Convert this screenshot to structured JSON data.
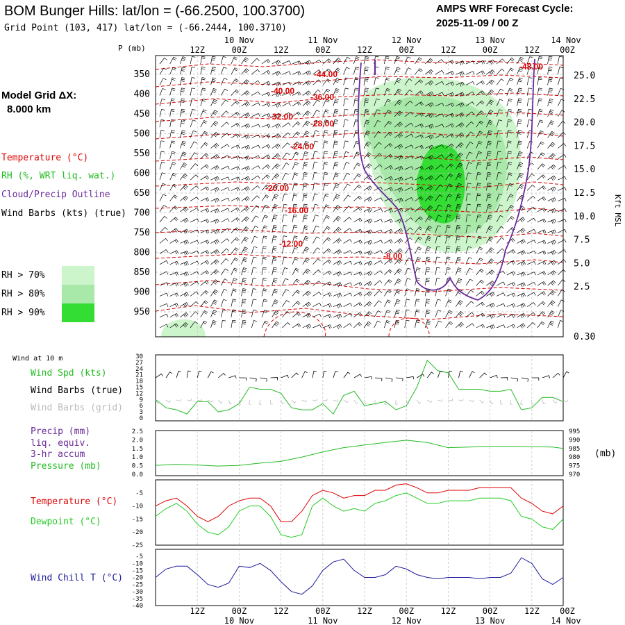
{
  "header": {
    "title": "BOM Bunger Hills:  lat/lon = (-66.2500, 100.3700)",
    "grid_point": "Grid Point (103, 417) lat/lon = (-66.2444, 100.3710)",
    "cycle_label": "AMPS WRF Forecast Cycle:",
    "cycle_value": "2025-11-09 / 00  Z"
  },
  "colors": {
    "temperature": "#dd0000",
    "rh": "#22bb22",
    "cloud": "#6a2a9a",
    "wind": "#000000",
    "grid_barbs": "#bbbbbb",
    "precip": "#6a2a9a",
    "dewpoint": "#22cc22",
    "windchill": "#1a1a99",
    "rh70": "#ccf5cc",
    "rh80": "#a8e8a8",
    "rh90": "#33dd33"
  },
  "legend": {
    "model_grid": "Model Grid ΔX:",
    "model_grid_value": "8.000 km",
    "temperature": "Temperature (°C)",
    "rh": "RH (%, WRT liq. wat.)",
    "cloud": "Cloud/Precip Outline",
    "wind": "Wind Barbs (kts) (true)",
    "rh70": "RH > 70%",
    "rh80": "RH > 80%",
    "rh90": "RH > 90%"
  },
  "time_axis": {
    "labels": [
      "12Z",
      "00Z",
      "12Z",
      "00Z",
      "12Z",
      "00Z",
      "12Z",
      "00Z",
      "12Z",
      "00Z"
    ],
    "day_labels": [
      "10 Nov",
      "11 Nov",
      "12 Nov",
      "13 Nov",
      "14 Nov"
    ]
  },
  "chart_data": [
    {
      "id": "cross_section",
      "type": "heatmap",
      "ylabel_left": "P (mb)",
      "ylabel_right": "Kft MSL",
      "pressure_levels": [
        "350",
        "400",
        "450",
        "500",
        "550",
        "600",
        "650",
        "700",
        "750",
        "800",
        "850",
        "900",
        "950"
      ],
      "height_labels": [
        "25.0",
        "22.5",
        "20.0",
        "17.5",
        "15.0",
        "12.5",
        "10.0",
        "7.5",
        "5.0",
        "2.5",
        "0.30"
      ],
      "temperature_contour_labels": [
        "-44.00",
        "-40.00",
        "-36.00",
        "-32.00",
        "-28.00",
        "-24.00",
        "-20.00",
        "-16.00",
        "-12.00",
        "-8.00",
        "-48.00"
      ],
      "grid": true
    },
    {
      "id": "wind10m",
      "type": "line",
      "title": "Wind at 10 m",
      "series_labels": [
        "Wind Spd (kts)",
        "Wind Barbs (true)",
        "Wind Barbs (grid)"
      ],
      "y_ticks": [
        "30",
        "27",
        "24",
        "21",
        "18",
        "15",
        "12",
        "9",
        "6",
        "3",
        "0"
      ],
      "ylim": [
        0,
        30
      ],
      "x": [
        0,
        3,
        6,
        9,
        12,
        15,
        18,
        21,
        24,
        27,
        30,
        33,
        36,
        39,
        42,
        45,
        48,
        51,
        54,
        57,
        60,
        63,
        66,
        69,
        72,
        75,
        78,
        81,
        84,
        87,
        90,
        93,
        96,
        99,
        102,
        105,
        108,
        111,
        114,
        117
      ],
      "series": [
        {
          "name": "Wind Spd (kts)",
          "values": [
            9,
            5,
            4,
            2,
            8,
            8,
            3,
            4,
            7,
            15,
            14,
            14,
            12,
            5,
            4,
            4,
            7,
            2,
            11,
            13,
            6,
            7,
            8,
            4,
            6,
            15,
            28,
            23,
            22,
            14,
            14,
            14,
            13,
            13,
            14,
            4,
            5,
            10,
            10,
            8
          ]
        }
      ]
    },
    {
      "id": "precip_pressure",
      "type": "line",
      "series_labels": [
        "Precip (mm)",
        "liq. equiv.",
        "3-hr accum",
        "Pressure (mb)"
      ],
      "y_ticks_left": [
        "2.5",
        "2.0",
        "1.5",
        "1.0",
        "0.5",
        "0.0"
      ],
      "y_ticks_right": [
        "995",
        "990",
        "985",
        "980",
        "975",
        "970"
      ],
      "right_label": "(mb)",
      "ylim_left": [
        0,
        2.5
      ],
      "ylim_right": [
        970,
        995
      ],
      "x": [
        0,
        6,
        12,
        18,
        24,
        30,
        36,
        42,
        48,
        54,
        60,
        66,
        72,
        78,
        84,
        90,
        96,
        102,
        108,
        114,
        117
      ],
      "series": [
        {
          "name": "Pressure (mb)",
          "values": [
            975.2,
            975.8,
            975.4,
            974.8,
            975.2,
            976.5,
            977.5,
            980.0,
            983.0,
            985.5,
            987.0,
            988.5,
            989.8,
            988.5,
            985.5,
            985.8,
            986.2,
            986.2,
            986.0,
            985.8,
            985.0
          ]
        }
      ]
    },
    {
      "id": "temperature",
      "type": "line",
      "series_labels": [
        "Temperature (°C)",
        "Dewpoint (°C)"
      ],
      "y_ticks": [
        "-5",
        "-10",
        "-15",
        "-20",
        "-25"
      ],
      "ylim": [
        -25,
        0
      ],
      "x": [
        0,
        3,
        6,
        9,
        12,
        15,
        18,
        21,
        24,
        27,
        30,
        33,
        36,
        39,
        42,
        45,
        48,
        51,
        54,
        57,
        60,
        63,
        66,
        69,
        72,
        75,
        78,
        81,
        84,
        87,
        90,
        93,
        96,
        99,
        102,
        105,
        108,
        111,
        114,
        117
      ],
      "series": [
        {
          "name": "Temperature (°C)",
          "values": [
            -10,
            -8,
            -7,
            -10,
            -14,
            -16,
            -14,
            -10,
            -8,
            -7,
            -7,
            -10,
            -16,
            -16,
            -12,
            -6,
            -4,
            -5,
            -7,
            -6,
            -6,
            -4,
            -4,
            -2,
            -1.5,
            -3,
            -5,
            -5,
            -4,
            -4,
            -4,
            -3,
            -3,
            -3,
            -3,
            -7,
            -9,
            -12,
            -13,
            -10
          ]
        },
        {
          "name": "Dewpoint (°C)",
          "values": [
            -14,
            -11,
            -9,
            -12,
            -17,
            -20,
            -21,
            -18,
            -12,
            -10,
            -10,
            -14,
            -21,
            -22,
            -21,
            -10,
            -7,
            -10,
            -12,
            -11,
            -12,
            -9,
            -8,
            -6,
            -5,
            -7,
            -9,
            -9,
            -8,
            -8,
            -8,
            -7,
            -7,
            -7,
            -8,
            -14,
            -15,
            -18,
            -19,
            -15
          ]
        }
      ]
    },
    {
      "id": "windchill",
      "type": "line",
      "series_labels": [
        "Wind Chill T (°C)"
      ],
      "y_ticks": [
        "-5",
        "-10",
        "-15",
        "-20",
        "-25",
        "-30",
        "-35",
        "-40"
      ],
      "ylim": [
        -40,
        0
      ],
      "x": [
        0,
        3,
        6,
        9,
        12,
        15,
        18,
        21,
        24,
        27,
        30,
        33,
        36,
        39,
        42,
        45,
        48,
        51,
        54,
        57,
        60,
        63,
        66,
        69,
        72,
        75,
        78,
        81,
        84,
        87,
        90,
        93,
        96,
        99,
        102,
        105,
        108,
        111,
        114,
        117
      ],
      "series": [
        {
          "name": "Wind Chill T (°C)",
          "values": [
            -20,
            -14,
            -12,
            -12,
            -18,
            -25,
            -27,
            -24,
            -12,
            -13,
            -10,
            -15,
            -23,
            -30,
            -32,
            -26,
            -15,
            -9,
            -7,
            -15,
            -20,
            -20,
            -18,
            -12,
            -14,
            -18,
            -20,
            -21,
            -20,
            -20,
            -20,
            -21,
            -20,
            -20,
            -17,
            -6,
            -10,
            -21,
            -25,
            -20
          ]
        }
      ]
    }
  ]
}
